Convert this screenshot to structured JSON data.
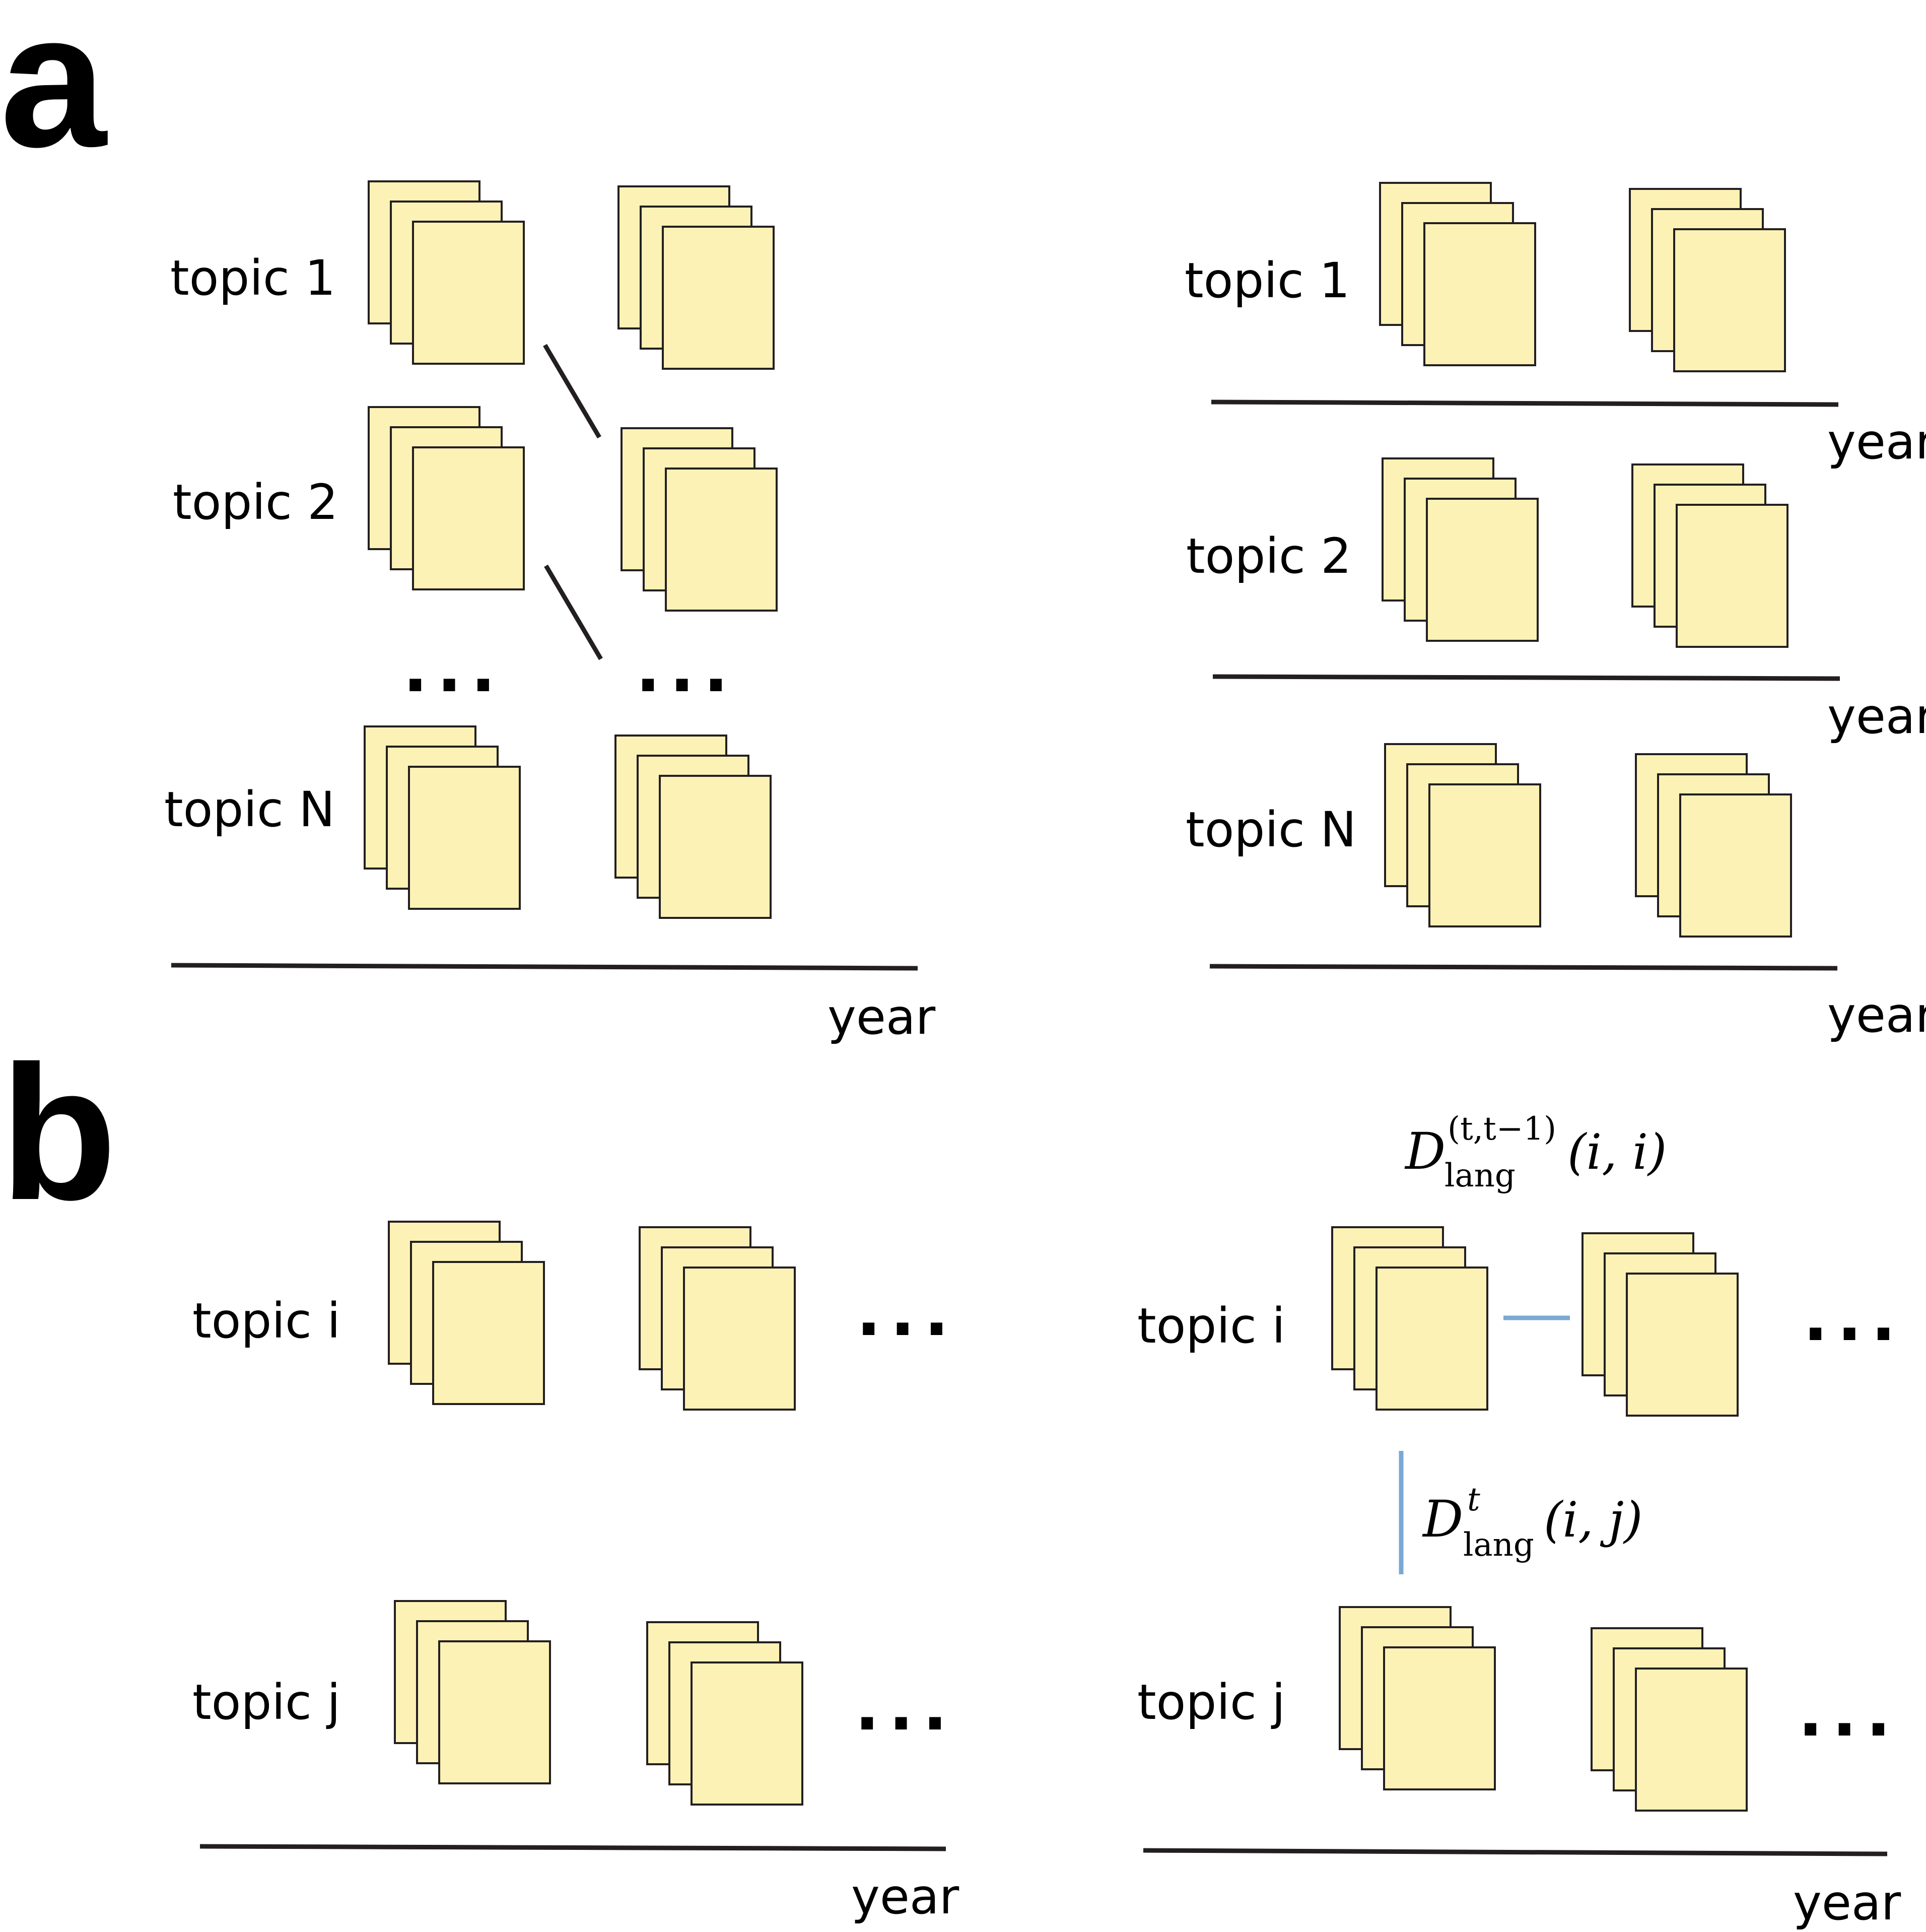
{
  "panels": {
    "a": {
      "letter": "a",
      "left": {
        "topics": [
          "topic 1",
          "topic 2",
          "topic N"
        ],
        "ellipsis": "...",
        "axis_label": "year"
      },
      "right": {
        "topics": [
          "topic 1",
          "topic 2",
          "topic N"
        ],
        "axis_labels": [
          "year",
          "year",
          "year"
        ]
      }
    },
    "b": {
      "letter": "b",
      "left": {
        "topics": [
          "topic i",
          "topic j"
        ],
        "ellipsis": "...",
        "axis_label": "year"
      },
      "right": {
        "topics": [
          "topic i",
          "topic j"
        ],
        "ellipsis": "...",
        "axis_label": "year",
        "formula_temporal": {
          "symbol": "D",
          "superscript": "(t,t−1)",
          "subscript": "lang",
          "args": "(i, i)"
        },
        "formula_cross": {
          "symbol": "D",
          "superscript": "t",
          "subscript": "lang",
          "args": "(i, j)"
        }
      }
    }
  },
  "colors": {
    "sheet_fill": "#fdf2b5",
    "line": "#231f20",
    "similarity_line": "#7aa9d3"
  },
  "icons": [
    "document-stack-icon"
  ]
}
